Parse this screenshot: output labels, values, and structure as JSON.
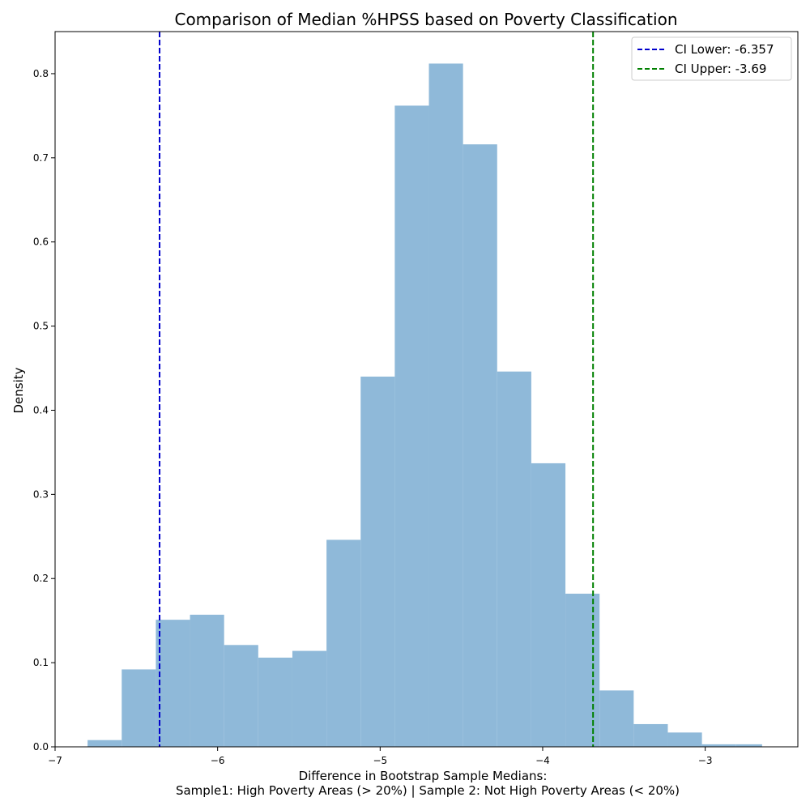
{
  "chart_data": {
    "type": "bar",
    "title": "Comparison of Median %HPSS based on Poverty Classification",
    "xlabel_line1": "Difference in Bootstrap Sample Medians:",
    "xlabel_line2": "Sample1: High Poverty Areas (> 20%) | Sample 2: Not High Poverty Areas (< 20%)",
    "ylabel": "Density",
    "xlim": [
      -7.0,
      -2.43
    ],
    "ylim": [
      0,
      0.85
    ],
    "xticks": [
      -7,
      -6,
      -5,
      -4,
      -3
    ],
    "xtick_labels": [
      "−7",
      "−6",
      "−5",
      "−4",
      "−3"
    ],
    "yticks": [
      0.0,
      0.1,
      0.2,
      0.3,
      0.4,
      0.5,
      0.6,
      0.7,
      0.8
    ],
    "ytick_labels": [
      "0.0",
      "0.1",
      "0.2",
      "0.3",
      "0.4",
      "0.5",
      "0.6",
      "0.7",
      "0.8"
    ],
    "bin_edges": [
      -6.8,
      -6.59,
      -6.38,
      -6.17,
      -5.96,
      -5.75,
      -5.54,
      -5.33,
      -5.12,
      -4.91,
      -4.7,
      -4.49,
      -4.28,
      -4.07,
      -3.86,
      -3.65,
      -3.44,
      -3.23,
      -3.02,
      -2.81
    ],
    "values": [
      0.008,
      0.092,
      0.151,
      0.157,
      0.121,
      0.106,
      0.114,
      0.246,
      0.44,
      0.762,
      0.812,
      0.716,
      0.446,
      0.337,
      0.182,
      0.067,
      0.027,
      0.017,
      0.003,
      0.003
    ],
    "bin_edges_last": -2.65,
    "bar_color": "#8fb9d9",
    "ci_lines": [
      {
        "name": "CI Lower: -6.357",
        "value": -6.357,
        "color": "#0000cc"
      },
      {
        "name": "CI Upper: -3.69",
        "value": -3.69,
        "color": "#008000"
      }
    ],
    "legend_position": "top-right",
    "grid": false
  }
}
